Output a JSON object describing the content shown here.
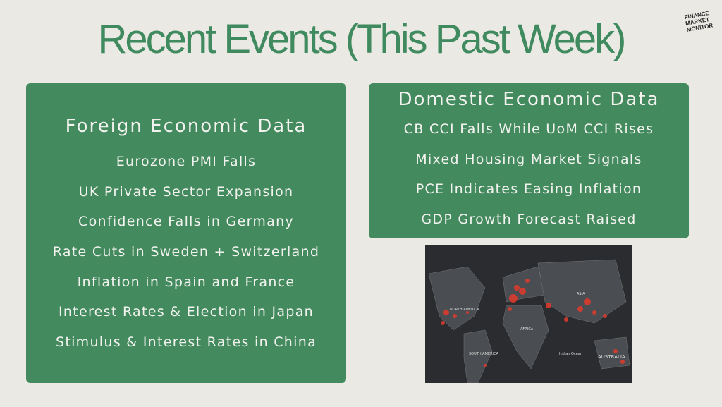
{
  "header": {
    "title": "Recent Events (This Past Week)",
    "logo": [
      "FINANCE",
      "MARKET",
      "MONITOR"
    ]
  },
  "foreign": {
    "title": "Foreign Economic Data",
    "items": [
      "Eurozone PMI Falls",
      "UK Private Sector Expansion",
      "Confidence Falls in Germany",
      "Rate Cuts in Sweden + Switzerland",
      "Inflation in Spain and France",
      "Interest Rates & Election in Japan",
      "Stimulus & Interest Rates in China"
    ]
  },
  "domestic": {
    "title": "Domestic Economic Data",
    "items": [
      "CB CCI Falls While UoM CCI Rises",
      "Mixed Housing Market Signals",
      "PCE Indicates Easing Inflation",
      "GDP Growth Forecast Raised"
    ]
  },
  "map": {
    "labels": [
      "NORTH AMERICA",
      "SOUTH AMERICA",
      "AFRICA",
      "ASIA",
      "AUSTRALIA",
      "Indian Ocean"
    ]
  }
}
